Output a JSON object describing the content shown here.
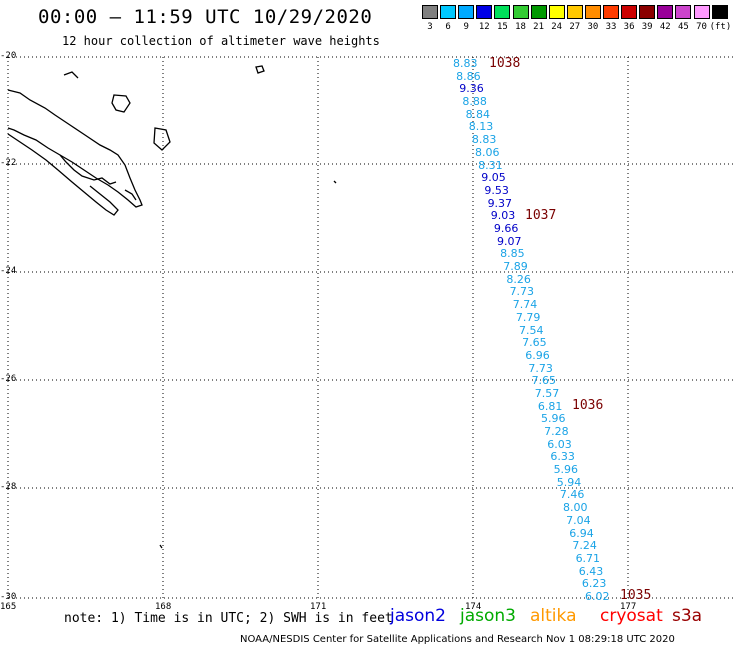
{
  "header": {
    "title": "00:00 – 11:59 UTC 10/29/2020",
    "subtitle": "12 hour collection of altimeter wave heights"
  },
  "colorscale": {
    "labels": [
      "3",
      "6",
      "9",
      "12",
      "15",
      "18",
      "21",
      "24",
      "27",
      "30",
      "33",
      "36",
      "39",
      "42",
      "45",
      "70",
      "(ft)"
    ],
    "colors": [
      "#808080",
      "#00c8ff",
      "#00aaff",
      "#0000e6",
      "#00e05a",
      "#33cc33",
      "#009900",
      "#ffff00",
      "#ffc800",
      "#ff8c00",
      "#ff3c00",
      "#cc0000",
      "#8b0000",
      "#990099",
      "#cc44cc",
      "#ff99ff",
      "#000000"
    ]
  },
  "axes": {
    "lat_labels": [
      "-20",
      "-22",
      "-24",
      "-26",
      "-28",
      "-30"
    ],
    "lon_labels": [
      "165",
      "168",
      "171",
      "174",
      "177"
    ]
  },
  "swh_readings": [
    {
      "v": "8.83",
      "dark": false
    },
    {
      "v": "8.86",
      "dark": false
    },
    {
      "v": "9.36",
      "dark": true
    },
    {
      "v": "8.88",
      "dark": false
    },
    {
      "v": "8.84",
      "dark": false
    },
    {
      "v": "8.13",
      "dark": false
    },
    {
      "v": "8.83",
      "dark": false
    },
    {
      "v": "8.06",
      "dark": false
    },
    {
      "v": "8.31",
      "dark": false
    },
    {
      "v": "9.05",
      "dark": true
    },
    {
      "v": "9.53",
      "dark": true
    },
    {
      "v": "9.37",
      "dark": true
    },
    {
      "v": "9.03",
      "dark": true
    },
    {
      "v": "9.66",
      "dark": true
    },
    {
      "v": "9.07",
      "dark": true
    },
    {
      "v": "8.85",
      "dark": false
    },
    {
      "v": "7.89",
      "dark": false
    },
    {
      "v": "8.26",
      "dark": false
    },
    {
      "v": "7.73",
      "dark": false
    },
    {
      "v": "7.74",
      "dark": false
    },
    {
      "v": "7.79",
      "dark": false
    },
    {
      "v": "7.54",
      "dark": false
    },
    {
      "v": "7.65",
      "dark": false
    },
    {
      "v": "6.96",
      "dark": false
    },
    {
      "v": "7.73",
      "dark": false
    },
    {
      "v": "7.65",
      "dark": false
    },
    {
      "v": "7.57",
      "dark": false
    },
    {
      "v": "6.81",
      "dark": false
    },
    {
      "v": "5.96",
      "dark": false
    },
    {
      "v": "7.28",
      "dark": false
    },
    {
      "v": "6.03",
      "dark": false
    },
    {
      "v": "6.33",
      "dark": false
    },
    {
      "v": "5.96",
      "dark": false
    },
    {
      "v": "5.94",
      "dark": false
    },
    {
      "v": "7.46",
      "dark": false
    },
    {
      "v": "8.00",
      "dark": false
    },
    {
      "v": "7.04",
      "dark": false
    },
    {
      "v": "6.94",
      "dark": false
    },
    {
      "v": "7.24",
      "dark": false
    },
    {
      "v": "6.71",
      "dark": false
    },
    {
      "v": "6.43",
      "dark": false
    },
    {
      "v": "6.23",
      "dark": false
    },
    {
      "v": "6.02",
      "dark": false
    }
  ],
  "pass_times": [
    "1038",
    "1037",
    "1036",
    "1035"
  ],
  "footer": {
    "note": "note: 1) Time is in UTC; 2) SWH is in feet",
    "satellites": [
      {
        "name": "jason2",
        "color": "#0000dd"
      },
      {
        "name": "jason3",
        "color": "#00aa00"
      },
      {
        "name": "altika",
        "color": "#ff9900"
      },
      {
        "name": "cryosat",
        "color": "#ff0000"
      },
      {
        "name": "s3a",
        "color": "#990000"
      }
    ],
    "credit": "NOAA/NESDIS Center for Satellite Applications and Research   Nov  1 08:29:18 UTC 2020"
  }
}
